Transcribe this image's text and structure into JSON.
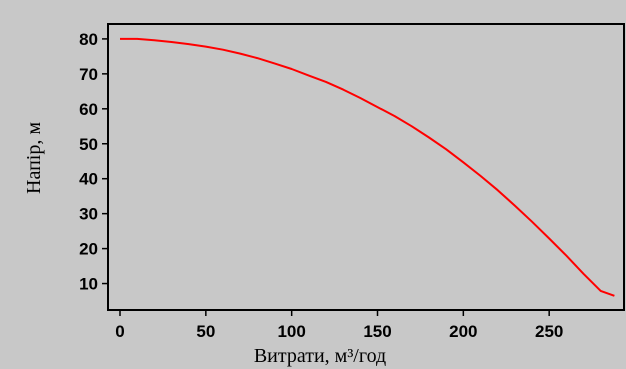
{
  "chart_data": {
    "type": "line",
    "xlabel": "Витрати, м³/год",
    "ylabel": "Напір, м",
    "xlim": [
      -8,
      292
    ],
    "ylim": [
      2,
      83
    ],
    "x_ticks": [
      "0",
      "50",
      "100",
      "150",
      "200",
      "250"
    ],
    "y_ticks": [
      "10",
      "20",
      "30",
      "40",
      "50",
      "60",
      "70",
      "80"
    ],
    "x_tick_values": [
      0,
      50,
      100,
      150,
      200,
      250
    ],
    "y_tick_values": [
      10,
      20,
      30,
      40,
      50,
      60,
      70,
      80
    ],
    "grid": false,
    "series": [
      {
        "color": "#ff0000",
        "x": [
          0,
          10,
          20,
          30,
          40,
          50,
          60,
          70,
          80,
          90,
          100,
          110,
          120,
          130,
          140,
          150,
          160,
          170,
          180,
          190,
          200,
          210,
          220,
          230,
          240,
          250,
          260,
          270,
          280,
          288
        ],
        "y": [
          80.0,
          80.0,
          79.6,
          79.1,
          78.5,
          77.8,
          76.9,
          75.8,
          74.5,
          73.0,
          71.4,
          69.5,
          67.7,
          65.5,
          63.1,
          60.5,
          57.9,
          55.0,
          51.8,
          48.4,
          44.7,
          40.8,
          36.7,
          32.3,
          27.7,
          22.9,
          18.0,
          12.8,
          7.9,
          6.5
        ]
      }
    ],
    "plot_background": "#c8c8c8",
    "axis_color": "#000000"
  }
}
